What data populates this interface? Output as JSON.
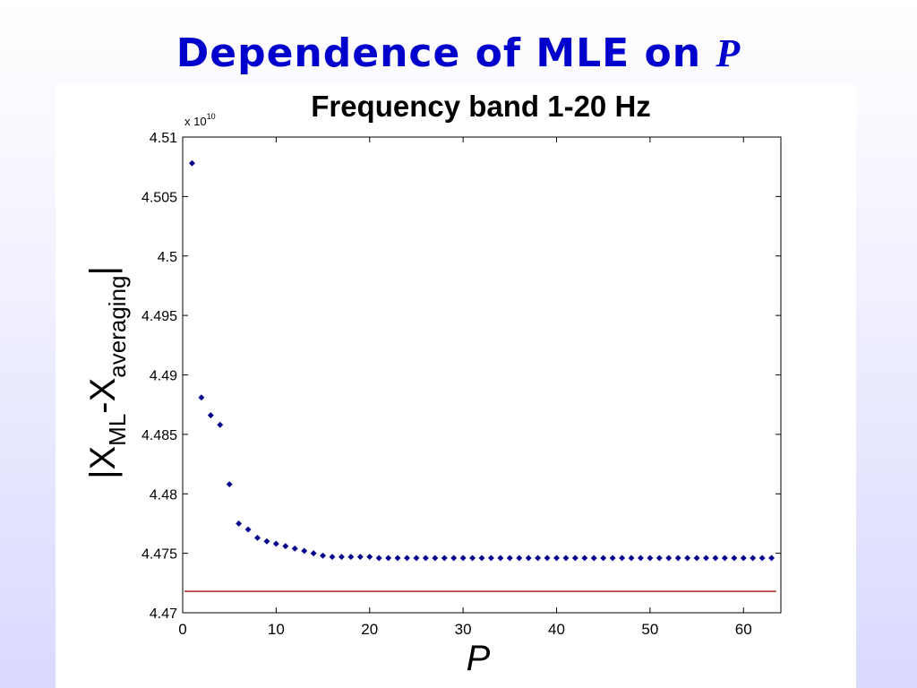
{
  "slide": {
    "title_prefix": "Dependence of MLE on",
    "title_var": "P"
  },
  "chart_data": {
    "type": "scatter",
    "title": "Frequency band 1-20 Hz",
    "xlabel": "P",
    "ylabel_parts": [
      "|X",
      "ML",
      "-X",
      "averaging",
      "|"
    ],
    "y_exponent": "x 10",
    "y_exponent_power": "10",
    "xlim": [
      0,
      64
    ],
    "ylim": [
      4.47,
      4.51
    ],
    "x_ticks": [
      0,
      10,
      20,
      30,
      40,
      50,
      60
    ],
    "x_tick_labels": [
      "0",
      "10",
      "20",
      "30",
      "40",
      "50",
      "60"
    ],
    "y_ticks": [
      4.47,
      4.475,
      4.48,
      4.485,
      4.49,
      4.495,
      4.5,
      4.505,
      4.51
    ],
    "y_tick_labels": [
      "4.47",
      "4.475",
      "4.48",
      "4.485",
      "4.49",
      "4.495",
      "4.5",
      "4.505",
      "4.51"
    ],
    "grid": false,
    "series": [
      {
        "marker_color": "#00008b",
        "x": [
          1,
          2,
          3,
          4,
          5,
          6,
          7,
          8,
          9,
          10,
          11,
          12,
          13,
          14,
          15,
          16,
          17,
          18,
          19,
          20,
          21,
          22,
          23,
          24,
          25,
          26,
          27,
          28,
          29,
          30,
          31,
          32,
          33,
          34,
          35,
          36,
          37,
          38,
          39,
          40,
          41,
          42,
          43,
          44,
          45,
          46,
          47,
          48,
          49,
          50,
          51,
          52,
          53,
          54,
          55,
          56,
          57,
          58,
          59,
          60,
          61,
          62,
          63
        ],
        "y": [
          4.5078,
          4.4881,
          4.4866,
          4.4858,
          4.4808,
          4.4775,
          4.477,
          4.4763,
          4.476,
          4.4758,
          4.4756,
          4.4754,
          4.4752,
          4.475,
          4.4748,
          4.4747,
          4.4747,
          4.4747,
          4.4747,
          4.4747,
          4.4746,
          4.4746,
          4.4746,
          4.4746,
          4.4746,
          4.4746,
          4.4746,
          4.4746,
          4.4746,
          4.4746,
          4.4746,
          4.4746,
          4.4746,
          4.4746,
          4.4746,
          4.4746,
          4.4746,
          4.4746,
          4.4746,
          4.4746,
          4.4746,
          4.4746,
          4.4746,
          4.4746,
          4.4746,
          4.4746,
          4.4746,
          4.4746,
          4.4746,
          4.4746,
          4.4746,
          4.4746,
          4.4746,
          4.4746,
          4.4746,
          4.4746,
          4.4746,
          4.4746,
          4.4746,
          4.4746,
          4.4746,
          4.4746,
          4.4746
        ]
      }
    ],
    "reference_line": {
      "y": 4.4718,
      "x": [
        0,
        63.5
      ],
      "color": "#b22222"
    }
  }
}
